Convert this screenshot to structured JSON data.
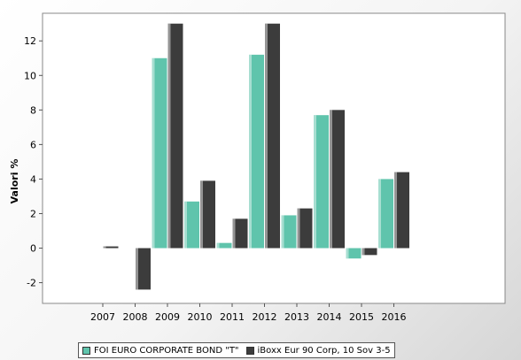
{
  "chart_data": {
    "type": "bar",
    "title": "",
    "xlabel": "",
    "ylabel": "Valori %",
    "ylim": [
      -3.2,
      13.6
    ],
    "yticks": [
      -2,
      0,
      2,
      4,
      6,
      8,
      10,
      12
    ],
    "grid": false,
    "legend_position": "bottom",
    "categories": [
      "2007",
      "2008",
      "2009",
      "2010",
      "2011",
      "2012",
      "2013",
      "2014",
      "2015",
      "2016"
    ],
    "series": [
      {
        "name": "FOI EURO CORPORATE BOND \"T\"",
        "color": "#5fc4ac",
        "values": [
          null,
          null,
          11.0,
          2.7,
          0.3,
          11.2,
          1.9,
          7.7,
          -0.6,
          4.0
        ]
      },
      {
        "name": "iBoxx Eur 90 Corp, 10 Sov 3-5",
        "color": "#3c3c3c",
        "values": [
          0.1,
          -2.4,
          13.0,
          3.9,
          1.7,
          13.0,
          2.3,
          8.0,
          -0.4,
          4.4
        ]
      }
    ]
  }
}
